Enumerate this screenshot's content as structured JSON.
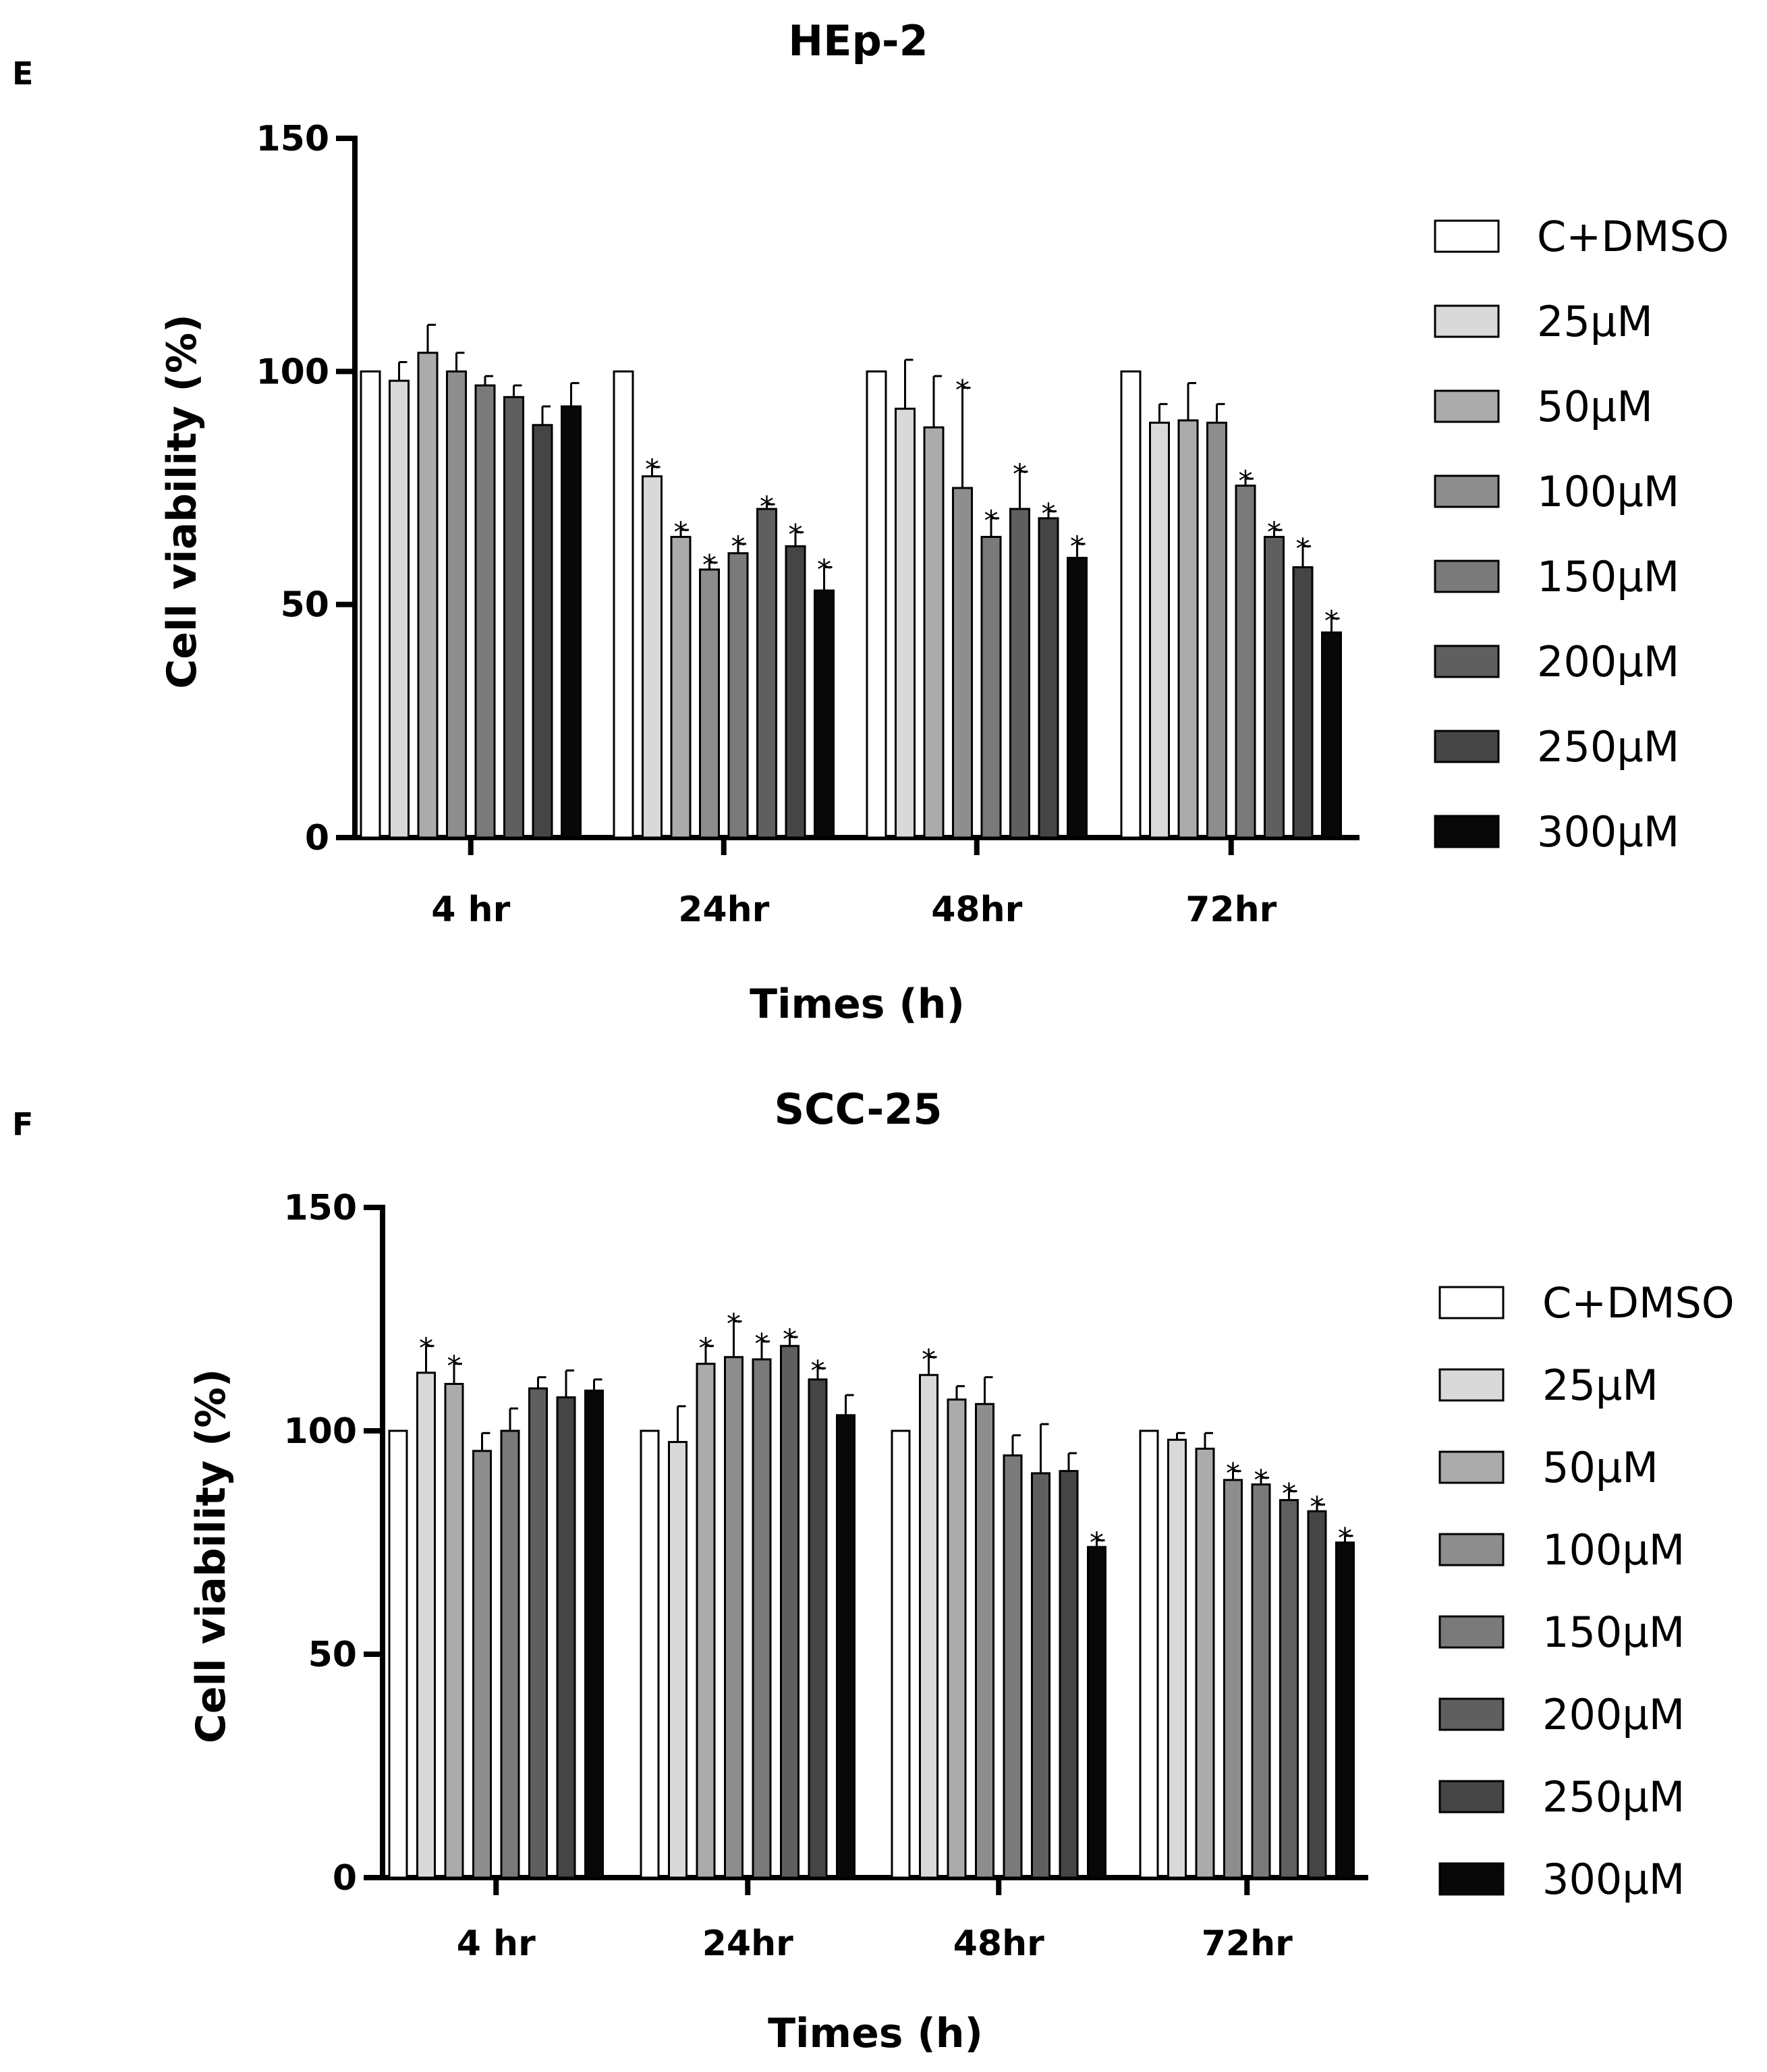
{
  "chart_data": [
    {
      "panel": "E",
      "type": "bar",
      "title": "HEp-2",
      "xlabel": "Times (h)",
      "ylabel": "Cell viability (%)",
      "ylim": [
        0,
        150
      ],
      "yticks": [
        "0",
        "50",
        "100",
        "150"
      ],
      "categories": [
        "4 hr",
        "24hr",
        "48hr",
        "72hr"
      ],
      "series": [
        {
          "name": "C+DMSO",
          "color": "#ffffff",
          "values": [
            100,
            100,
            100,
            100
          ],
          "errors": [
            0,
            0,
            0,
            0
          ],
          "sig": [
            false,
            false,
            false,
            false
          ]
        },
        {
          "name": "25µM",
          "color": "#d9d9d9",
          "values": [
            98,
            77.5,
            92,
            89
          ],
          "errors": [
            4,
            2,
            10.5,
            4
          ],
          "sig": [
            false,
            true,
            false,
            false
          ]
        },
        {
          "name": "50µM",
          "color": "#ababab",
          "values": [
            104,
            64.5,
            88,
            89.5
          ],
          "errors": [
            6,
            1.5,
            11,
            8
          ],
          "sig": [
            false,
            true,
            false,
            false
          ]
        },
        {
          "name": "100µM",
          "color": "#8d8d8d",
          "values": [
            100,
            57.5,
            75,
            89
          ],
          "errors": [
            4,
            1.5,
            21.5,
            4
          ],
          "sig": [
            false,
            true,
            true,
            false
          ]
        },
        {
          "name": "150µM",
          "color": "#7a7a7a",
          "values": [
            97,
            61,
            64.5,
            75.5
          ],
          "errors": [
            2,
            2,
            4,
            1.5
          ],
          "sig": [
            false,
            true,
            true,
            true
          ]
        },
        {
          "name": "200µM",
          "color": "#5f5f5f",
          "values": [
            94.5,
            70.5,
            70.5,
            64.5
          ],
          "errors": [
            2.5,
            1,
            8,
            1.5
          ],
          "sig": [
            false,
            true,
            true,
            true
          ]
        },
        {
          "name": "250µM",
          "color": "#454545",
          "values": [
            88.5,
            62.5,
            68.5,
            58
          ],
          "errors": [
            4,
            3,
            1.5,
            4.5
          ],
          "sig": [
            false,
            true,
            true,
            true
          ]
        },
        {
          "name": "300µM",
          "color": "#080808",
          "values": [
            92.5,
            53,
            60,
            44
          ],
          "errors": [
            5,
            5,
            3,
            3
          ],
          "sig": [
            false,
            true,
            true,
            true
          ]
        }
      ]
    },
    {
      "panel": "F",
      "type": "bar",
      "title": "SCC-25",
      "xlabel": "Times (h)",
      "ylabel": "Cell viability (%)",
      "ylim": [
        0,
        150
      ],
      "yticks": [
        "0",
        "50",
        "100",
        "150"
      ],
      "categories": [
        "4 hr",
        "24hr",
        "48hr",
        "72hr"
      ],
      "series": [
        {
          "name": "C+DMSO",
          "color": "#ffffff",
          "values": [
            100,
            100,
            100,
            100
          ],
          "errors": [
            0,
            0,
            0,
            0
          ],
          "sig": [
            false,
            false,
            false,
            false
          ]
        },
        {
          "name": "25µM",
          "color": "#d9d9d9",
          "values": [
            113,
            97.5,
            112.5,
            98
          ],
          "errors": [
            6,
            8,
            4,
            1.5
          ],
          "sig": [
            true,
            false,
            true,
            false
          ]
        },
        {
          "name": "50µM",
          "color": "#ababab",
          "values": [
            110.5,
            115,
            107,
            96
          ],
          "errors": [
            4.5,
            4,
            3,
            3.5
          ],
          "sig": [
            true,
            true,
            false,
            false
          ]
        },
        {
          "name": "100µM",
          "color": "#8d8d8d",
          "values": [
            95.5,
            116.5,
            106,
            89
          ],
          "errors": [
            4,
            8,
            6,
            2
          ],
          "sig": [
            false,
            true,
            false,
            true
          ]
        },
        {
          "name": "150µM",
          "color": "#7a7a7a",
          "values": [
            100,
            116,
            94.5,
            88
          ],
          "errors": [
            5,
            4,
            4.5,
            1.5
          ],
          "sig": [
            false,
            true,
            false,
            true
          ]
        },
        {
          "name": "200µM",
          "color": "#5f5f5f",
          "values": [
            109.5,
            119,
            90.5,
            84.5
          ],
          "errors": [
            2.5,
            2,
            11,
            2
          ],
          "sig": [
            false,
            true,
            false,
            true
          ]
        },
        {
          "name": "250µM",
          "color": "#454545",
          "values": [
            107.5,
            111.5,
            91,
            82
          ],
          "errors": [
            6,
            2.5,
            4,
            1.5
          ],
          "sig": [
            false,
            true,
            false,
            true
          ]
        },
        {
          "name": "300µM",
          "color": "#080808",
          "values": [
            109,
            103.5,
            74,
            75
          ],
          "errors": [
            2.5,
            4.5,
            1.5,
            1.5
          ],
          "sig": [
            false,
            false,
            true,
            true
          ]
        }
      ]
    }
  ]
}
